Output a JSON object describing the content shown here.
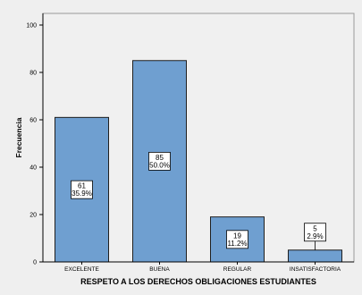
{
  "colors": {
    "background": "#efefef",
    "plot_background": "#f0f0f0",
    "bar_fill": "#6f9fd0",
    "bar_stroke": "#1f1f1f",
    "label_box": "#ffffff",
    "axis": "#000000"
  },
  "chart_data": {
    "type": "bar",
    "categories": [
      "EXCELENTE",
      "BUENA",
      "REGULAR",
      "INSATISFACTORIA"
    ],
    "values": [
      61,
      85,
      19,
      5
    ],
    "labels": [
      [
        "61",
        "35.9%"
      ],
      [
        "85",
        "50.0%"
      ],
      [
        "19",
        "11.2%"
      ],
      [
        "5",
        "2.9%"
      ]
    ],
    "xlabel": "RESPETO A LOS DERECHOS OBLIGACIONES ESTUDIANTES",
    "ylabel": "Frecuencia",
    "ylim": [
      0,
      100
    ],
    "yticks": [
      0,
      20,
      40,
      60,
      80,
      100
    ],
    "grid": false,
    "legend": "none"
  }
}
